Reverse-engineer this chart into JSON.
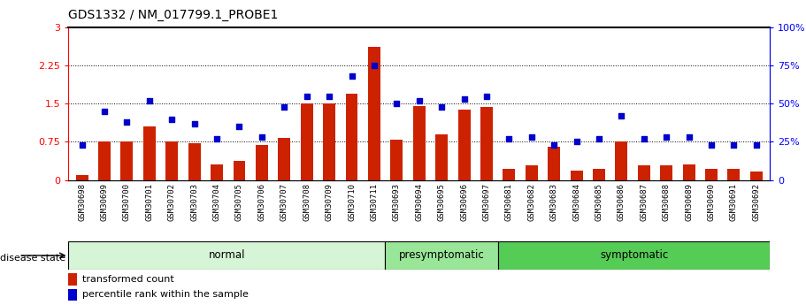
{
  "title": "GDS1332 / NM_017799.1_PROBE1",
  "categories": [
    "GSM30698",
    "GSM30699",
    "GSM30700",
    "GSM30701",
    "GSM30702",
    "GSM30703",
    "GSM30704",
    "GSM30705",
    "GSM30706",
    "GSM30707",
    "GSM30708",
    "GSM30709",
    "GSM30710",
    "GSM30711",
    "GSM30693",
    "GSM30694",
    "GSM30695",
    "GSM30696",
    "GSM30697",
    "GSM30681",
    "GSM30682",
    "GSM30683",
    "GSM30684",
    "GSM30685",
    "GSM30686",
    "GSM30687",
    "GSM30688",
    "GSM30689",
    "GSM30690",
    "GSM30691",
    "GSM30692"
  ],
  "bar_values": [
    0.1,
    0.75,
    0.75,
    1.05,
    0.75,
    0.73,
    0.3,
    0.38,
    0.68,
    0.82,
    1.5,
    1.5,
    1.7,
    2.62,
    0.8,
    1.45,
    0.9,
    1.38,
    1.43,
    0.22,
    0.28,
    0.65,
    0.18,
    0.22,
    0.75,
    0.28,
    0.28,
    0.3,
    0.22,
    0.22,
    0.17
  ],
  "dot_values": [
    23,
    45,
    38,
    52,
    40,
    37,
    27,
    35,
    28,
    48,
    55,
    55,
    68,
    75,
    50,
    52,
    48,
    53,
    55,
    27,
    28,
    23,
    25,
    27,
    42,
    27,
    28,
    28,
    23,
    23,
    23
  ],
  "group_labels": [
    "normal",
    "presymptomatic",
    "symptomatic"
  ],
  "group_boundaries": [
    0,
    14,
    19,
    31
  ],
  "group_colors": [
    "#d6f5d6",
    "#99e699",
    "#55cc55"
  ],
  "bar_color": "#cc2200",
  "dot_color": "#0000cc",
  "ylim_left": [
    0,
    3.0
  ],
  "ylim_right": [
    0,
    100
  ],
  "yticks_left": [
    0,
    0.75,
    1.5,
    2.25,
    3.0
  ],
  "yticks_right": [
    0,
    25,
    50,
    75,
    100
  ],
  "background_color": "#ffffff",
  "grid_lines": [
    0.75,
    1.5,
    2.25
  ],
  "legend_items": [
    "transformed count",
    "percentile rank within the sample"
  ],
  "disease_state_label": "disease state",
  "xtick_bg_color": "#cccccc"
}
